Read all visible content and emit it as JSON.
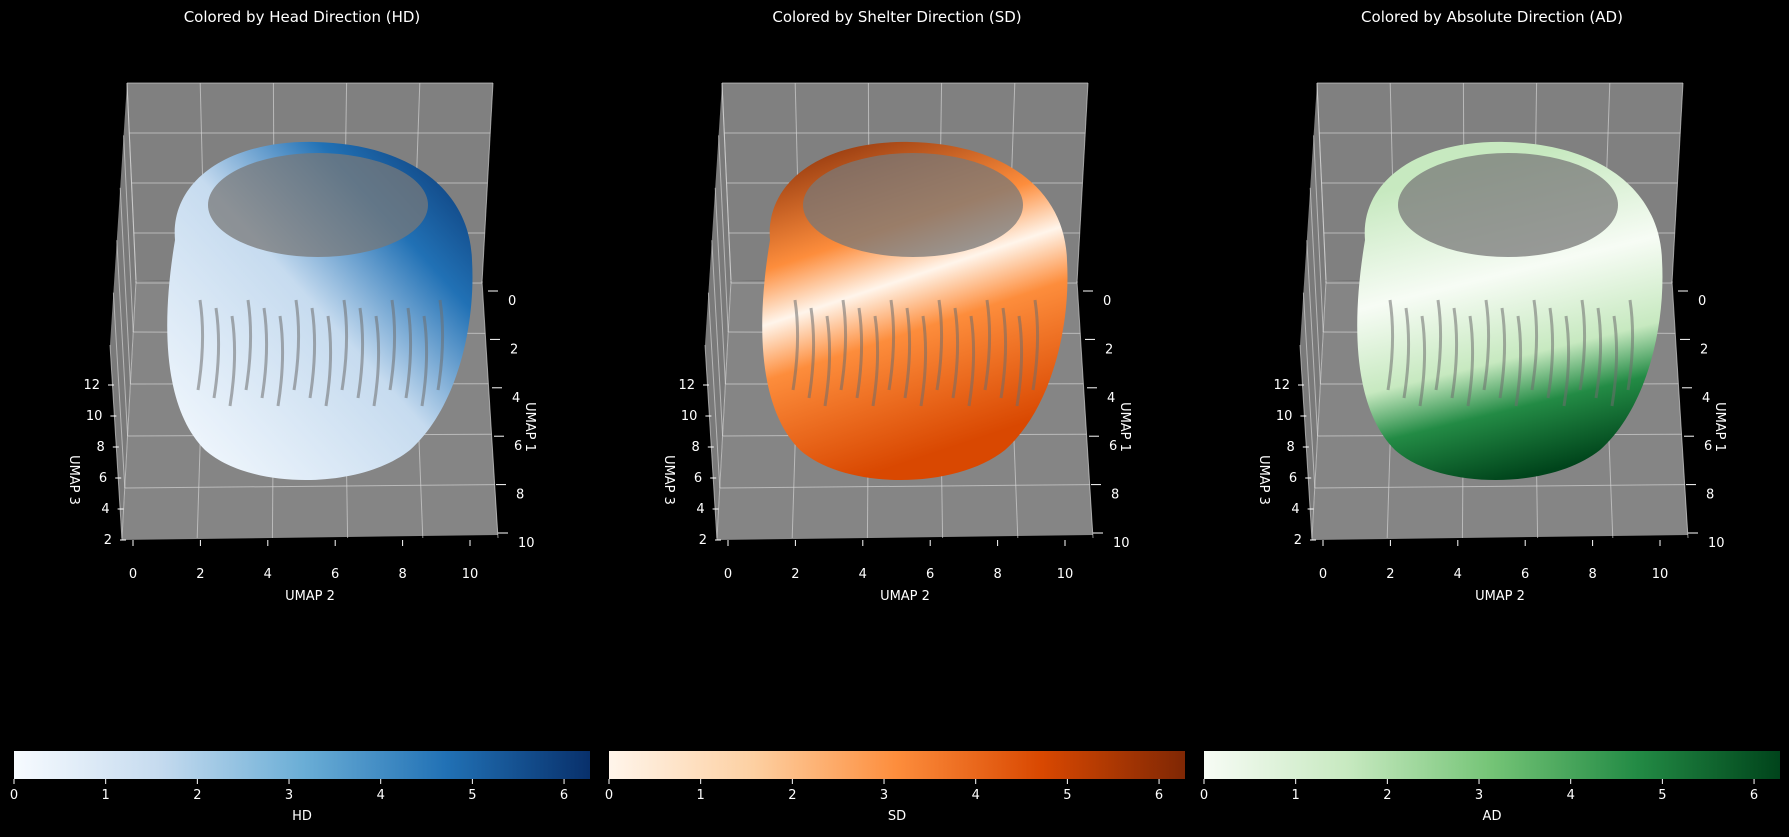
{
  "chart_data": [
    {
      "type": "scatter",
      "title": "Colored by Head Direction (HD)",
      "xlabel": "UMAP 2",
      "ylabel": "UMAP 1",
      "zlabel": "UMAP 3",
      "x_ticks": [
        0,
        2,
        4,
        6,
        8,
        10
      ],
      "y_ticks": [
        0,
        2,
        4,
        6,
        8,
        10
      ],
      "z_ticks": [
        2,
        4,
        6,
        8,
        10,
        12
      ],
      "colorbar": {
        "label": "HD",
        "ticks": [
          0,
          1,
          2,
          3,
          4,
          5,
          6
        ],
        "range": [
          0,
          6.283
        ],
        "colors": [
          "#f7fbff",
          "#c6dbef",
          "#6baed6",
          "#2171b5",
          "#08306b"
        ]
      }
    },
    {
      "type": "scatter",
      "title": "Colored by Shelter Direction (SD)",
      "xlabel": "UMAP 2",
      "ylabel": "UMAP 1",
      "zlabel": "UMAP 3",
      "x_ticks": [
        0,
        2,
        4,
        6,
        8,
        10
      ],
      "y_ticks": [
        0,
        2,
        4,
        6,
        8,
        10
      ],
      "z_ticks": [
        2,
        4,
        6,
        8,
        10,
        12
      ],
      "colorbar": {
        "label": "SD",
        "ticks": [
          0,
          1,
          2,
          3,
          4,
          5,
          6
        ],
        "range": [
          0,
          6.283
        ],
        "colors": [
          "#fff5eb",
          "#fdd0a2",
          "#fd8d3c",
          "#d94801",
          "#7f2704"
        ]
      }
    },
    {
      "type": "scatter",
      "title": "Colored by Absolute Direction (AD)",
      "xlabel": "UMAP 2",
      "ylabel": "UMAP 1",
      "zlabel": "UMAP 3",
      "x_ticks": [
        0,
        2,
        4,
        6,
        8,
        10
      ],
      "y_ticks": [
        0,
        2,
        4,
        6,
        8,
        10
      ],
      "z_ticks": [
        2,
        4,
        6,
        8,
        10,
        12
      ],
      "colorbar": {
        "label": "AD",
        "ticks": [
          0,
          1,
          2,
          3,
          4,
          5,
          6
        ],
        "range": [
          0,
          6.283
        ],
        "colors": [
          "#f7fcf5",
          "#c7e9c0",
          "#74c476",
          "#238b45",
          "#00441b"
        ]
      }
    }
  ]
}
